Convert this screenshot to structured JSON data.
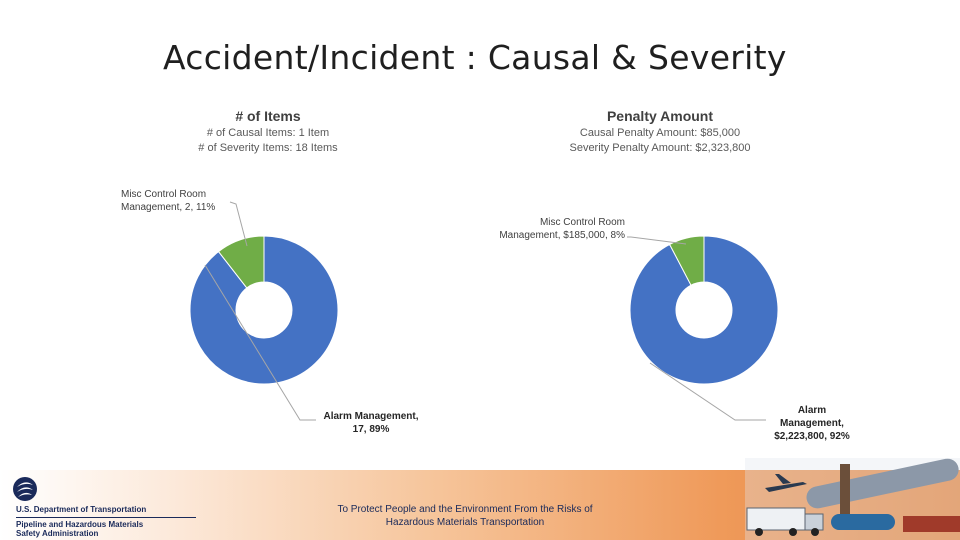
{
  "slide": {
    "title": "Accident/Incident : Causal & Severity"
  },
  "chart_data": [
    {
      "type": "pie",
      "title": "# of Items",
      "subtitle_lines": [
        "# of Causal Items: 1 Item",
        "# of Severity Items: 18 Items"
      ],
      "categories": [
        "Alarm Management",
        "Misc Control Room Management"
      ],
      "values": [
        17,
        2
      ],
      "percents": [
        89,
        11
      ],
      "colors": [
        "#4472c4",
        "#70ad47"
      ],
      "labels": {
        "alarm": [
          "Alarm Management,",
          "17, 89%"
        ],
        "misc": [
          "Misc Control Room",
          "Management, 2, 11%"
        ]
      }
    },
    {
      "type": "pie",
      "title": "Penalty Amount",
      "subtitle_lines": [
        "Causal Penalty Amount: $85,000",
        "Severity Penalty Amount: $2,323,800"
      ],
      "categories": [
        "Alarm Management",
        "Misc Control Room Management"
      ],
      "values": [
        2223800,
        185000
      ],
      "percents": [
        92,
        8
      ],
      "colors": [
        "#4472c4",
        "#70ad47"
      ],
      "labels": {
        "alarm": [
          "Alarm",
          "Management,",
          "$2,223,800, 92%"
        ],
        "misc": [
          "Misc Control Room",
          "Management, $185,000, 8%"
        ]
      }
    }
  ],
  "footer": {
    "department": "U.S. Department of Transportation",
    "agency_line1": "Pipeline and Hazardous Materials",
    "agency_line2": "Safety Administration",
    "mission_line1": "To Protect People and the Environment From the Risks of",
    "mission_line2": "Hazardous Materials Transportation"
  }
}
